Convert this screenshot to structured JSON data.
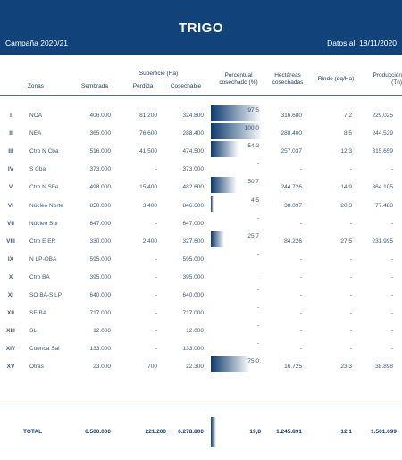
{
  "banner": {
    "title": "TRIGO",
    "campaign": "Campaña 2020/21",
    "date": "Datos al: 18/11/2020"
  },
  "headers": {
    "superficie": "Superficie (Ha)",
    "zonas": "Zonas",
    "sembrada": "Sembrada",
    "perdida": "Perdida",
    "cosechable": "Cosechable",
    "porcentual_1": "Porcentual",
    "porcentual_2": "cosechado (%)",
    "hectareas_1": "Hectáreas",
    "hectareas_2": "cosechadas",
    "rinde": "Rinde (qq/Ha)",
    "produccion_1": "Producción",
    "produccion_2": "(Tn)"
  },
  "rows": [
    {
      "num": "I",
      "zona": "NOA",
      "sembrada": "406.000",
      "perdida": "81.200",
      "cosechable": "324.800",
      "pct": "97,5",
      "pct_value": 97.5,
      "hect": "316.680",
      "rinde": "7,2",
      "prod": "229.025"
    },
    {
      "num": "II",
      "zona": "NEA",
      "sembrada": "365.000",
      "perdida": "76.600",
      "cosechable": "288.400",
      "pct": "100,0",
      "pct_value": 100.0,
      "hect": "288.400",
      "rinde": "8,5",
      "prod": "244.529"
    },
    {
      "num": "III",
      "zona": "Ctro N Cba",
      "sembrada": "516.000",
      "perdida": "41.500",
      "cosechable": "474.500",
      "pct": "54,2",
      "pct_value": 54.2,
      "hect": "257.037",
      "rinde": "12,3",
      "prod": "315.659"
    },
    {
      "num": "IV",
      "zona": "S Cba",
      "sembrada": "373.000",
      "perdida": "-",
      "cosechable": "373.000",
      "pct": "-",
      "pct_value": 0,
      "hect": "-",
      "rinde": "-",
      "prod": "-"
    },
    {
      "num": "V",
      "zona": "Ctro N SFe",
      "sembrada": "498.000",
      "perdida": "15.400",
      "cosechable": "482.600",
      "pct": "50,7",
      "pct_value": 50.7,
      "hect": "244.726",
      "rinde": "14,9",
      "prod": "364.105"
    },
    {
      "num": "VI",
      "zona": "Núcleo Norte",
      "sembrada": "850.000",
      "perdida": "3.400",
      "cosechable": "846.600",
      "pct": "4,5",
      "pct_value": 4.5,
      "hect": "38.097",
      "rinde": "20,3",
      "prod": "77.488"
    },
    {
      "num": "VII",
      "zona": "Núcleo Sur",
      "sembrada": "647.000",
      "perdida": "-",
      "cosechable": "647.000",
      "pct": "-",
      "pct_value": 0,
      "hect": "-",
      "rinde": "-",
      "prod": "-"
    },
    {
      "num": "VIII",
      "zona": "Ctro E ER",
      "sembrada": "330.000",
      "perdida": "2.400",
      "cosechable": "327.600",
      "pct": "25,7",
      "pct_value": 25.7,
      "hect": "84.226",
      "rinde": "27,5",
      "prod": "231.995"
    },
    {
      "num": "IX",
      "zona": "N LP-OBA",
      "sembrada": "595.000",
      "perdida": "-",
      "cosechable": "595.000",
      "pct": "-",
      "pct_value": 0,
      "hect": "-",
      "rinde": "-",
      "prod": "-"
    },
    {
      "num": "X",
      "zona": "Ctro BA",
      "sembrada": "395.000",
      "perdida": "-",
      "cosechable": "395.000",
      "pct": "-",
      "pct_value": 0,
      "hect": "-",
      "rinde": "-",
      "prod": "-"
    },
    {
      "num": "XI",
      "zona": "SO BA-S LP",
      "sembrada": "640.000",
      "perdida": "-",
      "cosechable": "640.000",
      "pct": "-",
      "pct_value": 0,
      "hect": "-",
      "rinde": "-",
      "prod": "-"
    },
    {
      "num": "XII",
      "zona": "SE BA",
      "sembrada": "717.000",
      "perdida": "-",
      "cosechable": "717.000",
      "pct": "-",
      "pct_value": 0,
      "hect": "-",
      "rinde": "-",
      "prod": "-"
    },
    {
      "num": "XIII",
      "zona": "SL",
      "sembrada": "12.000",
      "perdida": "-",
      "cosechable": "12.000",
      "pct": "-",
      "pct_value": 0,
      "hect": "-",
      "rinde": "-",
      "prod": "-"
    },
    {
      "num": "XIV",
      "zona": "Cuenca Sal",
      "sembrada": "133.000",
      "perdida": "-",
      "cosechable": "133.000",
      "pct": "-",
      "pct_value": 0,
      "hect": "-",
      "rinde": "-",
      "prod": "-"
    },
    {
      "num": "XV",
      "zona": "Otras",
      "sembrada": "23.000",
      "perdida": "700",
      "cosechable": "22.300",
      "pct": "75,0",
      "pct_value": 75.0,
      "hect": "16.725",
      "rinde": "23,3",
      "prod": "38.898"
    }
  ],
  "total": {
    "label": "TOTAL",
    "sembrada": "6.500.000",
    "perdida": "221.200",
    "cosechable": "6.278.800",
    "pct": "19,8",
    "pct_value": 19.8,
    "hect": "1.245.891",
    "rinde": "12,1",
    "prod": "1.501.699"
  },
  "colors": {
    "banner": "#12427a",
    "bar": "#0d3a6e"
  }
}
